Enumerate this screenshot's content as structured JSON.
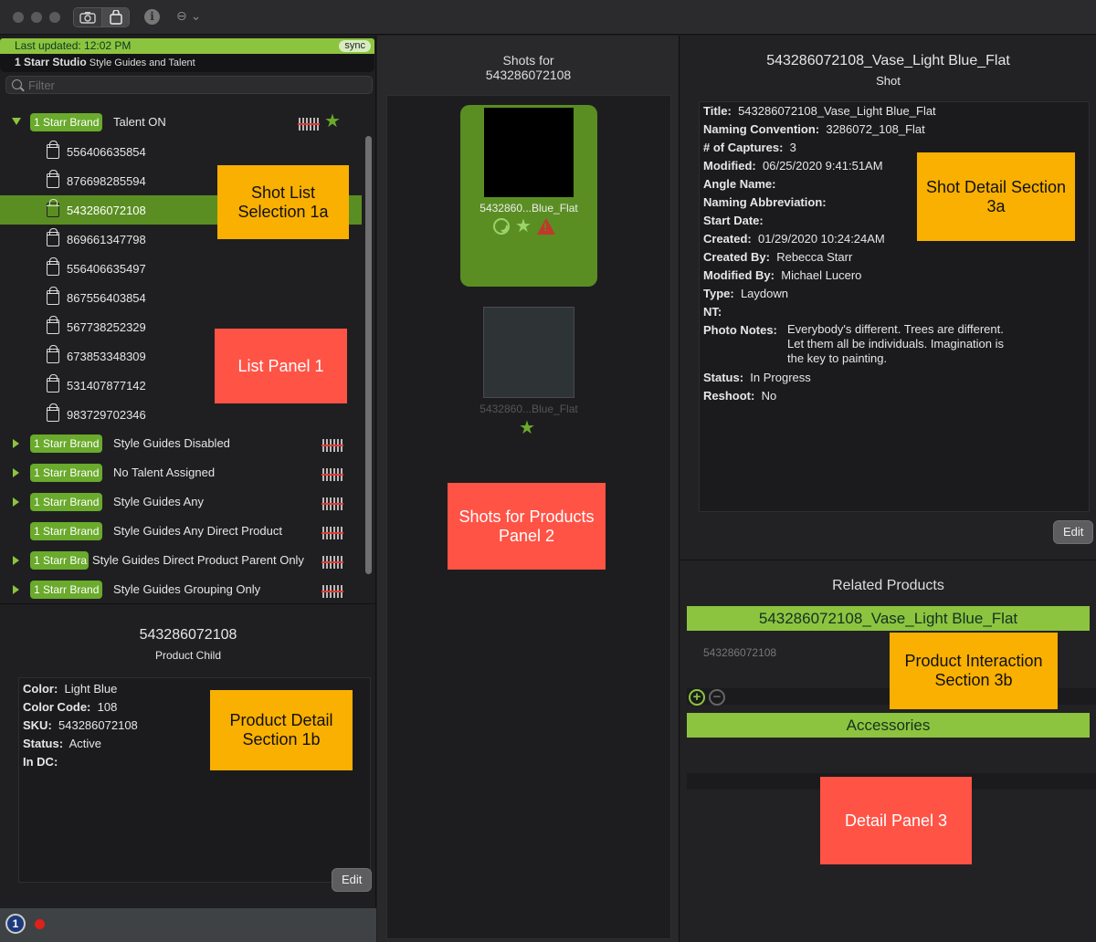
{
  "window": {
    "toolbar": {
      "camera_icon": "camera-icon",
      "bag_icon": "bag-icon",
      "info_glyph": "i",
      "more_glyph": "⊖ ⌄"
    }
  },
  "list_panel": {
    "header": {
      "last_updated": "Last updated: 12:02 PM",
      "sync": "sync",
      "studio": "1 Starr Studio",
      "studio_sub": "Style Guides and Talent"
    },
    "filter_placeholder": "Filter",
    "groups": [
      {
        "brand": "1 Starr Brand",
        "label": "Talent ON",
        "expanded": true,
        "starred": true
      },
      {
        "brand": "1 Starr Brand",
        "label": "Style Guides Disabled",
        "expanded": false
      },
      {
        "brand": "1 Starr Brand",
        "label": "No Talent Assigned",
        "expanded": false
      },
      {
        "brand": "1 Starr Brand",
        "label": "Style Guides Any",
        "expanded": false
      },
      {
        "brand": "1 Starr Brand",
        "label": "Style Guides Any Direct Product",
        "expanded": false
      },
      {
        "brand": "1 Starr Bra",
        "label": "Style Guides Direct Product Parent Only",
        "expanded": false
      },
      {
        "brand": "1 Starr Brand",
        "label": "Style Guides Grouping Only",
        "expanded": false
      }
    ],
    "items": [
      "556406635854",
      "876698285594",
      "543286072108",
      "869661347798",
      "556406635497",
      "867556403854",
      "567738252329",
      "673853348309",
      "531407877142",
      "983729702346"
    ],
    "selected_index": 2
  },
  "product_detail": {
    "title": "543286072108",
    "subtitle": "Product Child",
    "fields": [
      {
        "key": "Color:",
        "value": "Light Blue"
      },
      {
        "key": "Color Code:",
        "value": "108"
      },
      {
        "key": "SKU:",
        "value": "543286072108"
      },
      {
        "key": "Status:",
        "value": "Active"
      },
      {
        "key": "In DC:",
        "value": ""
      }
    ],
    "edit": "Edit"
  },
  "status_bar": {
    "app_badge": "1"
  },
  "shots_panel": {
    "title_line1": "Shots for",
    "title_line2": "543286072108",
    "shots": [
      {
        "caption": "5432860...Blue_Flat"
      },
      {
        "caption": "5432860...Blue_Flat"
      }
    ]
  },
  "shot_detail": {
    "title": "543286072108_Vase_Light Blue_Flat",
    "subtitle": "Shot",
    "fields": [
      {
        "key": "Title:",
        "value": "543286072108_Vase_Light Blue_Flat"
      },
      {
        "key": "Naming Convention:",
        "value": "3286072_108_Flat"
      },
      {
        "key": "# of Captures:",
        "value": "3"
      },
      {
        "key": "Modified:",
        "value": "06/25/2020 9:41:51AM"
      },
      {
        "key": "Angle Name:",
        "value": ""
      },
      {
        "key": "Naming Abbreviation:",
        "value": ""
      },
      {
        "key": "Start Date:",
        "value": ""
      },
      {
        "key": "Created:",
        "value": "01/29/2020 10:24:24AM"
      },
      {
        "key": "Created By:",
        "value": "Rebecca Starr"
      },
      {
        "key": "Modified By:",
        "value": "Michael Lucero"
      },
      {
        "key": "Type:",
        "value": "Laydown"
      },
      {
        "key": "NT:",
        "value": ""
      },
      {
        "key": "Photo Notes:",
        "value": ""
      },
      {
        "key": "Status:",
        "value": "In Progress"
      },
      {
        "key": "Reshoot:",
        "value": "No"
      }
    ],
    "photo_notes": "Everybody's different. Trees are different. Let them all be individuals. Imagination is the key to painting.",
    "edit": "Edit"
  },
  "related_products": {
    "title": "Related Products",
    "product_header": "543286072108_Vase_Light Blue_Flat",
    "product_sub": "543286072108",
    "add": "+",
    "remove": "−",
    "accessories": "Accessories"
  },
  "annotations": {
    "shot_list": "Shot List Selection 1a",
    "list_panel": "List Panel 1",
    "product_detail": "Product Detail Section 1b",
    "shots_panel": "Shots for Products Panel 2",
    "shot_detail": "Shot Detail Section 3a",
    "product_interaction": "Product Interaction Section 3b",
    "detail_panel": "Detail Panel 3"
  },
  "colors": {
    "accent": "#8cc43f",
    "selection": "#5a8e22",
    "annotation_orange": "#f9b000",
    "annotation_red": "#ff5346"
  }
}
